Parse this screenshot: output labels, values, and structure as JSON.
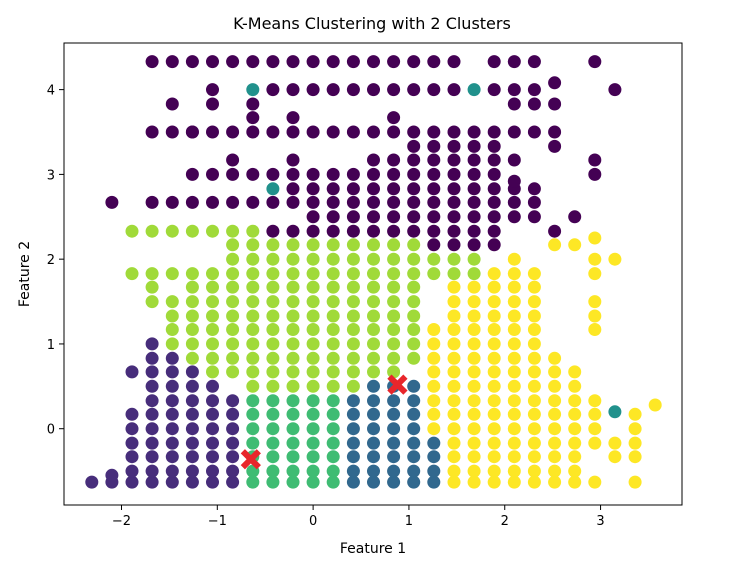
{
  "chart_data": {
    "type": "scatter",
    "title": "K-Means Clustering with 2 Clusters",
    "xlabel": "Feature 1",
    "ylabel": "Feature 2",
    "xlim": [
      -2.6,
      3.85
    ],
    "ylim": [
      -0.9,
      4.55
    ],
    "xticks": [
      -2,
      -1,
      0,
      1,
      2,
      3
    ],
    "yticks": [
      0,
      1,
      2,
      3,
      4
    ],
    "grid": false,
    "legend": "none",
    "colors": {
      "purple": "#440154",
      "indigo": "#472d7b",
      "blue": "#31688e",
      "teal": "#21918c",
      "green": "#3fbc73",
      "lime": "#a0da39",
      "yellow": "#fde725",
      "centroid": "#e8262b"
    },
    "series": [
      {
        "color": "purple",
        "columns": [
          {
            "x": -2.1,
            "y": [
              2.67
            ]
          },
          {
            "x": -1.68,
            "y": [
              2.67,
              3.5,
              4.33
            ]
          },
          {
            "x": -1.47,
            "y": [
              2.67,
              3.5,
              3.83,
              4.33
            ]
          },
          {
            "x": -1.26,
            "y": [
              2.67,
              3.5,
              4.33
            ]
          },
          {
            "x": -1.26,
            "y": [
              3.0,
              3.5
            ]
          },
          {
            "x": -1.05,
            "y": [
              2.67,
              3.0,
              3.5,
              3.83,
              4.0,
              4.33
            ]
          },
          {
            "x": -0.84,
            "y": [
              2.67,
              3.0,
              3.17,
              3.5,
              4.33
            ]
          },
          {
            "x": -0.63,
            "y": [
              2.67,
              3.0,
              3.5,
              3.67,
              3.83,
              4.33
            ]
          },
          {
            "x": -0.42,
            "y": [
              2.33,
              2.67,
              3.0,
              3.5,
              4.0,
              4.33
            ]
          },
          {
            "x": -0.21,
            "y": [
              2.33,
              2.67,
              2.83,
              3.0,
              3.17,
              3.5,
              3.67,
              4.0,
              4.33
            ]
          },
          {
            "x": 0.0,
            "y": [
              2.33,
              2.5,
              2.67,
              2.83,
              3.0,
              3.5,
              4.0,
              4.33
            ]
          },
          {
            "x": 0.21,
            "y": [
              2.33,
              2.5,
              2.67,
              2.83,
              3.0,
              3.5,
              4.0,
              4.33
            ]
          },
          {
            "x": 0.42,
            "y": [
              2.33,
              2.5,
              2.67,
              2.83,
              3.0,
              3.5,
              4.0,
              4.33
            ]
          },
          {
            "x": 0.63,
            "y": [
              2.33,
              2.5,
              2.67,
              2.83,
              3.0,
              3.17,
              3.5,
              4.0,
              4.33
            ]
          },
          {
            "x": 0.84,
            "y": [
              2.33,
              2.5,
              2.67,
              2.83,
              3.0,
              3.17,
              3.5,
              3.67,
              4.0,
              4.33
            ]
          },
          {
            "x": 1.05,
            "y": [
              2.33,
              2.5,
              2.67,
              2.83,
              3.0,
              3.17,
              3.33,
              3.5,
              4.0,
              4.33
            ]
          },
          {
            "x": 1.26,
            "y": [
              2.17,
              2.33,
              2.5,
              2.67,
              2.83,
              3.0,
              3.17,
              3.33,
              3.5,
              4.0,
              4.33
            ]
          },
          {
            "x": 1.47,
            "y": [
              2.17,
              2.33,
              2.5,
              2.67,
              2.83,
              3.0,
              3.17,
              3.33,
              3.5,
              4.0,
              4.33
            ]
          },
          {
            "x": 1.68,
            "y": [
              2.17,
              2.33,
              2.5,
              2.67,
              2.83,
              3.0,
              3.17,
              3.33,
              3.5
            ]
          },
          {
            "x": 1.89,
            "y": [
              2.17,
              2.33,
              2.5,
              2.67,
              2.83,
              3.0,
              3.17,
              3.33,
              3.5,
              4.0,
              4.33
            ]
          },
          {
            "x": 2.1,
            "y": [
              2.5,
              2.67,
              2.83,
              2.92,
              3.17,
              3.5,
              3.83,
              4.0,
              4.33
            ]
          },
          {
            "x": 2.31,
            "y": [
              2.5,
              2.67,
              2.83,
              3.5,
              3.83,
              4.0,
              4.33
            ]
          },
          {
            "x": 2.52,
            "y": [
              2.33,
              3.33,
              3.5,
              3.83,
              4.08
            ]
          },
          {
            "x": 2.73,
            "y": [
              2.5
            ]
          },
          {
            "x": 2.94,
            "y": [
              3.0,
              3.17,
              4.33
            ]
          },
          {
            "x": 3.15,
            "y": [
              4.0
            ]
          }
        ]
      },
      {
        "color": "lime",
        "columns": [
          {
            "x": -1.89,
            "y": [
              1.83,
              2.33
            ]
          },
          {
            "x": -1.68,
            "y": [
              1.5,
              1.67,
              1.83,
              2.33
            ]
          },
          {
            "x": -1.47,
            "y": [
              1.0,
              1.17,
              1.33,
              1.5,
              1.83,
              2.33
            ]
          },
          {
            "x": -1.26,
            "y": [
              0.83,
              1.0,
              1.5,
              1.67,
              1.83,
              2.33
            ]
          },
          {
            "x": -1.26,
            "y": [
              1.17,
              1.33
            ]
          },
          {
            "x": -1.05,
            "y": [
              0.67,
              0.83,
              1.0,
              1.17,
              1.33,
              1.5,
              1.67,
              1.83,
              2.33
            ]
          },
          {
            "x": -0.84,
            "y": [
              0.67,
              0.83,
              1.0,
              1.17,
              1.33,
              1.5,
              1.67,
              1.83,
              2.0,
              2.17,
              2.33
            ]
          },
          {
            "x": -0.63,
            "y": [
              0.5,
              0.67,
              0.83,
              1.0,
              1.17,
              1.33,
              1.5,
              1.67,
              1.83,
              2.0,
              2.17,
              2.33
            ]
          },
          {
            "x": -0.42,
            "y": [
              0.5,
              0.67,
              0.83,
              1.0,
              1.17,
              1.33,
              1.5,
              1.67,
              1.83,
              2.0,
              2.17
            ]
          },
          {
            "x": -0.21,
            "y": [
              0.5,
              0.67,
              0.83,
              1.0,
              1.17,
              1.33,
              1.5,
              1.67,
              1.83,
              2.0,
              2.17
            ]
          },
          {
            "x": 0.0,
            "y": [
              0.5,
              0.67,
              0.83,
              1.0,
              1.17,
              1.33,
              1.5,
              1.67,
              1.83,
              2.0,
              2.17
            ]
          },
          {
            "x": 0.21,
            "y": [
              0.5,
              0.67,
              0.83,
              1.0,
              1.17,
              1.33,
              1.5,
              1.67,
              1.83,
              2.0,
              2.17
            ]
          },
          {
            "x": 0.42,
            "y": [
              0.5,
              0.67,
              0.83,
              1.0,
              1.17,
              1.33,
              1.5,
              1.67,
              1.83,
              2.0,
              2.17
            ]
          },
          {
            "x": 0.63,
            "y": [
              0.67,
              0.83,
              1.0,
              1.17,
              1.33,
              1.5,
              1.67,
              1.83,
              2.0,
              2.17
            ]
          },
          {
            "x": 0.84,
            "y": [
              0.67,
              0.83,
              1.0,
              1.17,
              1.33,
              1.5,
              1.67,
              1.83,
              2.0,
              2.17
            ]
          },
          {
            "x": 1.05,
            "y": [
              0.83,
              1.0,
              1.17,
              1.33,
              1.5,
              1.67,
              1.83,
              2.0,
              2.17
            ]
          },
          {
            "x": 1.26,
            "y": [
              1.83,
              2.0
            ]
          },
          {
            "x": 1.47,
            "y": [
              1.83,
              2.0
            ]
          },
          {
            "x": 1.68,
            "y": [
              1.83,
              2.0
            ]
          }
        ]
      },
      {
        "color": "indigo",
        "columns": [
          {
            "x": -2.31,
            "y": [
              -0.63
            ]
          },
          {
            "x": -2.1,
            "y": [
              -0.63,
              -0.55
            ]
          },
          {
            "x": -1.89,
            "y": [
              -0.63,
              -0.5,
              -0.33,
              -0.17,
              0.0,
              0.17,
              0.67
            ]
          },
          {
            "x": -1.68,
            "y": [
              -0.63,
              -0.5,
              -0.33,
              -0.17,
              0.0,
              0.17,
              0.33,
              0.5,
              0.67,
              0.83,
              1.0
            ]
          },
          {
            "x": -1.47,
            "y": [
              -0.63,
              -0.5,
              -0.33,
              -0.17,
              0.0,
              0.17,
              0.33,
              0.5,
              0.67,
              0.83
            ]
          },
          {
            "x": -1.26,
            "y": [
              -0.63,
              -0.5,
              -0.33,
              -0.17,
              0.0,
              0.17,
              0.33,
              0.5,
              0.67
            ]
          },
          {
            "x": -1.05,
            "y": [
              -0.63,
              -0.5,
              -0.33,
              -0.17,
              0.0,
              0.17,
              0.33,
              0.5
            ]
          },
          {
            "x": -0.84,
            "y": [
              -0.63,
              -0.5,
              -0.33,
              -0.17,
              0.0,
              0.17,
              0.33
            ]
          }
        ]
      },
      {
        "color": "green",
        "columns": [
          {
            "x": -0.63,
            "y": [
              -0.63,
              -0.5,
              -0.33,
              -0.17,
              0.0,
              0.17,
              0.33
            ]
          },
          {
            "x": -0.42,
            "y": [
              -0.63,
              -0.5,
              -0.33,
              -0.17,
              0.0,
              0.17,
              0.33
            ]
          },
          {
            "x": -0.21,
            "y": [
              -0.63,
              -0.5,
              -0.33,
              -0.17,
              0.0,
              0.17,
              0.33
            ]
          },
          {
            "x": 0.0,
            "y": [
              -0.63,
              -0.5,
              -0.33,
              -0.17,
              0.0,
              0.17,
              0.33
            ]
          },
          {
            "x": 0.21,
            "y": [
              -0.63,
              -0.5,
              -0.33,
              -0.17,
              0.0,
              0.17,
              0.33
            ]
          }
        ]
      },
      {
        "color": "blue",
        "columns": [
          {
            "x": 0.42,
            "y": [
              -0.63,
              -0.5,
              -0.33,
              -0.17,
              0.0,
              0.17,
              0.33
            ]
          },
          {
            "x": 0.63,
            "y": [
              -0.63,
              -0.5,
              -0.33,
              -0.17,
              0.0,
              0.17,
              0.33,
              0.5
            ]
          },
          {
            "x": 0.84,
            "y": [
              -0.63,
              -0.5,
              -0.33,
              -0.17,
              0.0,
              0.17,
              0.33,
              0.5
            ]
          },
          {
            "x": 1.05,
            "y": [
              -0.63,
              -0.5,
              -0.33,
              -0.17,
              0.0,
              0.17,
              0.33,
              0.5
            ]
          },
          {
            "x": 1.26,
            "y": [
              -0.63,
              -0.5,
              -0.33,
              -0.17
            ]
          }
        ]
      },
      {
        "color": "yellow",
        "columns": [
          {
            "x": 1.26,
            "y": [
              0.0,
              0.17,
              0.33,
              0.5,
              0.67,
              0.83,
              1.0,
              1.17
            ]
          },
          {
            "x": 1.47,
            "y": [
              -0.63,
              -0.5,
              -0.33,
              -0.17,
              0.0,
              0.17,
              0.33,
              0.5,
              0.67,
              0.83,
              1.0,
              1.17,
              1.33,
              1.5,
              1.67
            ]
          },
          {
            "x": 1.68,
            "y": [
              -0.63,
              -0.5,
              -0.33,
              -0.17,
              0.0,
              0.17,
              0.33,
              0.5,
              0.67,
              0.83,
              1.0,
              1.17,
              1.33,
              1.5,
              1.67
            ]
          },
          {
            "x": 1.89,
            "y": [
              -0.63,
              -0.5,
              -0.33,
              -0.17,
              0.0,
              0.17,
              0.33,
              0.5,
              0.67,
              0.83,
              1.0,
              1.17,
              1.33,
              1.5,
              1.67,
              1.83
            ]
          },
          {
            "x": 2.1,
            "y": [
              -0.63,
              -0.5,
              -0.33,
              -0.17,
              0.0,
              0.17,
              0.33,
              0.5,
              0.67,
              0.83,
              1.0,
              1.17,
              1.33,
              1.5,
              1.67,
              1.83,
              2.0
            ]
          },
          {
            "x": 2.31,
            "y": [
              -0.63,
              -0.5,
              -0.33,
              -0.17,
              0.0,
              0.17,
              0.33,
              0.5,
              0.67,
              0.83,
              1.0,
              1.17,
              1.33,
              1.5,
              1.67,
              1.83
            ]
          },
          {
            "x": 2.52,
            "y": [
              -0.63,
              -0.5,
              -0.33,
              -0.17,
              0.0,
              0.17,
              0.33,
              0.5,
              0.67,
              0.83,
              2.17
            ]
          },
          {
            "x": 2.73,
            "y": [
              -0.63,
              -0.5,
              -0.33,
              -0.17,
              0.0,
              0.17,
              0.33,
              0.5,
              0.67,
              2.17
            ]
          },
          {
            "x": 2.94,
            "y": [
              -0.63,
              -0.17,
              0.0,
              0.17,
              0.33,
              1.17,
              1.33,
              1.5,
              1.83,
              2.0,
              2.25
            ]
          },
          {
            "x": 3.15,
            "y": [
              -0.33,
              -0.17,
              2.0
            ]
          },
          {
            "x": 3.36,
            "y": [
              -0.63,
              -0.33,
              -0.17,
              0.0,
              0.17
            ]
          },
          {
            "x": 3.57,
            "y": [
              0.28
            ]
          }
        ]
      },
      {
        "color": "teal",
        "columns": [
          {
            "x": -0.63,
            "y": [
              4.0
            ]
          },
          {
            "x": -0.42,
            "y": [
              2.83
            ]
          },
          {
            "x": 1.68,
            "y": [
              4.0
            ]
          },
          {
            "x": 3.15,
            "y": [
              0.2
            ]
          }
        ]
      }
    ],
    "centroids": [
      {
        "x": -0.65,
        "y": -0.36
      },
      {
        "x": 0.88,
        "y": 0.52
      }
    ]
  }
}
